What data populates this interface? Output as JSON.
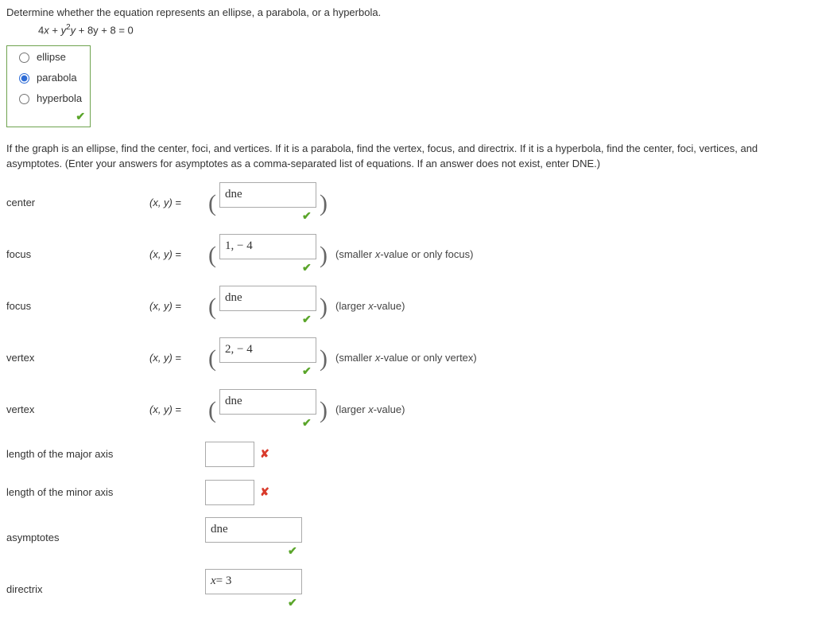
{
  "question": "Determine whether the equation represents an ellipse, a parabola, or a hyperbola.",
  "equation_prefix": "4",
  "equation_var1": "x",
  "equation_plus1": " + ",
  "equation_var2": "y",
  "equation_sup": "2",
  "equation_rest": " + 8y + 8 = 0",
  "options": {
    "ellipse": "ellipse",
    "parabola": "parabola",
    "hyperbola": "hyperbola"
  },
  "instruction": "If the graph is an ellipse, find the center, foci, and vertices. If it is a parabola, find the vertex, focus, and directrix. If it is a hyperbola, find the center, foci, vertices, and asymptotes. (Enter your answers for asymptotes as a comma-separated list of equations. If an answer does not exist, enter DNE.)",
  "labels": {
    "center": "center",
    "focus1": "focus",
    "focus2": "focus",
    "vertex1": "vertex",
    "vertex2": "vertex",
    "major": "length of the major axis",
    "minor": "length of the minor axis",
    "asymptotes": "asymptotes",
    "directrix": "directrix"
  },
  "xy": "(x, y)",
  "eq": " = ",
  "values": {
    "center": "dne",
    "focus1": "1, − 4",
    "focus2": "dne",
    "vertex1": "2, − 4",
    "vertex2": "dne",
    "major": "",
    "minor": "",
    "asymptotes": "dne",
    "directrix": "x = 3"
  },
  "notes": {
    "smaller_focus": "(smaller x-value or only focus)",
    "larger_focus": "(larger x-value)",
    "smaller_vertex": "(smaller x-value or only vertex)",
    "larger_vertex": "(larger x-value)"
  },
  "hints": {
    "smaller": "smaller ",
    "x": "x",
    "valueoronly": "-value or only focus)",
    "valueoronlyv": "-value or only vertex)",
    "larger": "larger ",
    "value": "-value)"
  }
}
